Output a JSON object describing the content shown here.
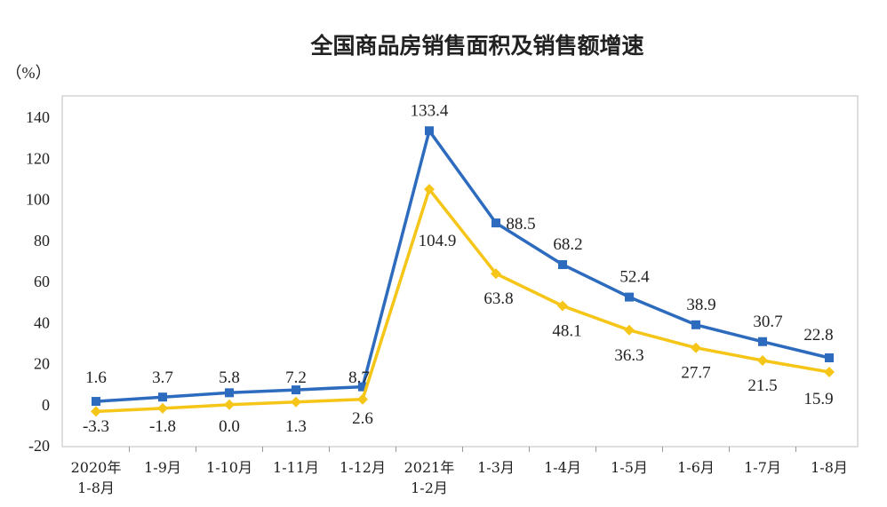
{
  "chart_data": {
    "type": "line",
    "title": "全国商品房销售面积及销售额增速",
    "y_unit": "（%）",
    "xlabel": "",
    "ylabel": "",
    "ylim": [
      -20,
      140
    ],
    "yticks": [
      -20,
      0,
      20,
      40,
      60,
      80,
      100,
      120,
      140
    ],
    "grid": false,
    "categories": [
      [
        "2020年",
        "1-8月"
      ],
      [
        "1-9月"
      ],
      [
        "1-10月"
      ],
      [
        "1-11月"
      ],
      [
        "1-12月"
      ],
      [
        "2021年",
        "1-2月"
      ],
      [
        "1-3月"
      ],
      [
        "1-4月"
      ],
      [
        "1-5月"
      ],
      [
        "1-6月"
      ],
      [
        "1-7月"
      ],
      [
        "1-8月"
      ]
    ],
    "series": [
      {
        "color": "#2c6bbd",
        "marker": "square",
        "values": [
          1.6,
          3.7,
          5.8,
          7.2,
          8.7,
          133.4,
          88.5,
          68.2,
          52.4,
          38.9,
          30.7,
          22.8
        ],
        "labels": [
          "1.6",
          "3.7",
          "5.8",
          "7.2",
          "8.7",
          "133.4",
          "88.5",
          "68.2",
          "52.4",
          "38.9",
          "30.7",
          "22.8"
        ]
      },
      {
        "color": "#f5c518",
        "marker": "diamond",
        "values": [
          -3.3,
          -1.8,
          0.0,
          1.3,
          2.6,
          104.9,
          63.8,
          48.1,
          36.3,
          27.7,
          21.5,
          15.9
        ],
        "labels": [
          "-3.3",
          "-1.8",
          "0.0",
          "1.3",
          "2.6",
          "104.9",
          "63.8",
          "48.1",
          "36.3",
          "27.7",
          "21.5",
          "15.9"
        ]
      }
    ]
  }
}
